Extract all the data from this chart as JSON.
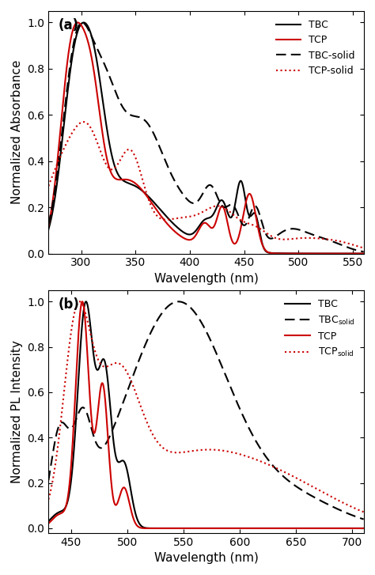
{
  "panel_a": {
    "xlabel": "Wavelength (nm)",
    "ylabel": "Normalized Absorbance",
    "xlim": [
      270,
      560
    ],
    "ylim": [
      0,
      1.05
    ],
    "xticks": [
      300,
      350,
      400,
      450,
      500,
      550
    ],
    "yticks": [
      0.0,
      0.2,
      0.4,
      0.6,
      0.8,
      1.0
    ],
    "label": "(a)",
    "legend": [
      "TBC",
      "TCP",
      "TBC-solid",
      "TCP-solid"
    ]
  },
  "panel_b": {
    "xlabel": "Wavelength (nm)",
    "ylabel": "Normalized PL Intensity",
    "xlim": [
      430,
      710
    ],
    "ylim": [
      -0.02,
      1.05
    ],
    "xticks": [
      450,
      500,
      550,
      600,
      650,
      700
    ],
    "yticks": [
      0.0,
      0.2,
      0.4,
      0.6,
      0.8,
      1.0
    ],
    "label": "(b)",
    "legend_tbc": "TBC",
    "legend_tbc_solid": "TBC$_{solid}$",
    "legend_tcp": "TCP",
    "legend_tcp_solid": "TCP$_{solid}$"
  },
  "colors": {
    "black": "#000000",
    "red": "#cc0000"
  }
}
